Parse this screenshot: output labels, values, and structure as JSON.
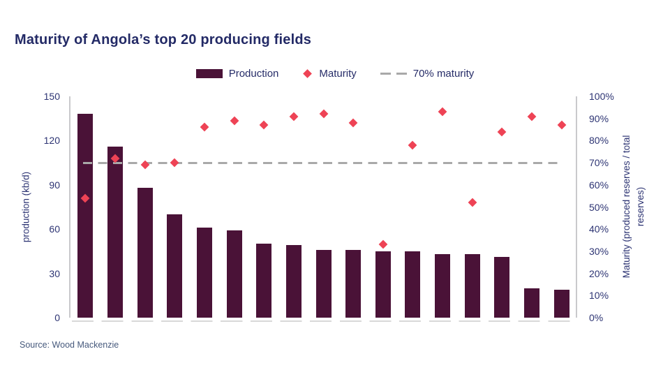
{
  "header": {
    "title": "Maturity of Angola’s top 20 producing fields"
  },
  "legend": {
    "items": [
      {
        "label": "Production",
        "icon": "bar-swatch",
        "color": "#4a1237"
      },
      {
        "label": "Maturity",
        "icon": "diamond",
        "color": "#ee4355"
      },
      {
        "label": "70% maturity",
        "icon": "dashed-line",
        "color": "#a9a9a9"
      }
    ]
  },
  "chart_data": {
    "type": "bar",
    "subtype": "combo bar + diamond scatter + dashed reference line",
    "title": "Maturity of Angola’s top 20 producing fields",
    "n_fields": 17,
    "x_tick_labels": [],
    "series": [
      {
        "name": "Production",
        "render": "bar",
        "axis": "left",
        "unit": "kb/d",
        "color": "#4a1237",
        "values": [
          138,
          116,
          88,
          70,
          61,
          59,
          50,
          49,
          46,
          46,
          45,
          45,
          43,
          43,
          41,
          20,
          19
        ]
      },
      {
        "name": "Maturity",
        "render": "scatter-diamond",
        "axis": "right",
        "unit": "%",
        "color": "#ee4355",
        "values": [
          54,
          72,
          69,
          70,
          86,
          89,
          87,
          91,
          92,
          88,
          33,
          78,
          93,
          52,
          84,
          91,
          87
        ]
      },
      {
        "name": "70% maturity",
        "render": "reference-line",
        "axis": "right",
        "unit": "%",
        "value": 70,
        "style": "dashed",
        "color": "#a9a9a9"
      }
    ],
    "left_axis": {
      "label": "production (kb/d)",
      "min": 0,
      "max": 150,
      "ticks": [
        0,
        30,
        60,
        90,
        120,
        150
      ]
    },
    "right_axis": {
      "label_line1": "Maturity (produced reserves / total",
      "label_line2": "reserves)",
      "min": 0,
      "max": 100,
      "ticks": [
        0,
        10,
        20,
        30,
        40,
        50,
        60,
        70,
        80,
        90,
        100
      ],
      "tick_suffix": "%"
    },
    "grid": false,
    "legend_position": "top-center",
    "colors": {
      "bar": "#4a1237",
      "diamond": "#ee4355",
      "reference_dash": "#a9a9a9",
      "axis_line": "#c9c9cc",
      "baseline_dash": "#d8d8d8",
      "text_navy": "#2d3473",
      "title_navy": "#232a66"
    }
  },
  "footer": {
    "source": "Source: Wood Mackenzie"
  }
}
